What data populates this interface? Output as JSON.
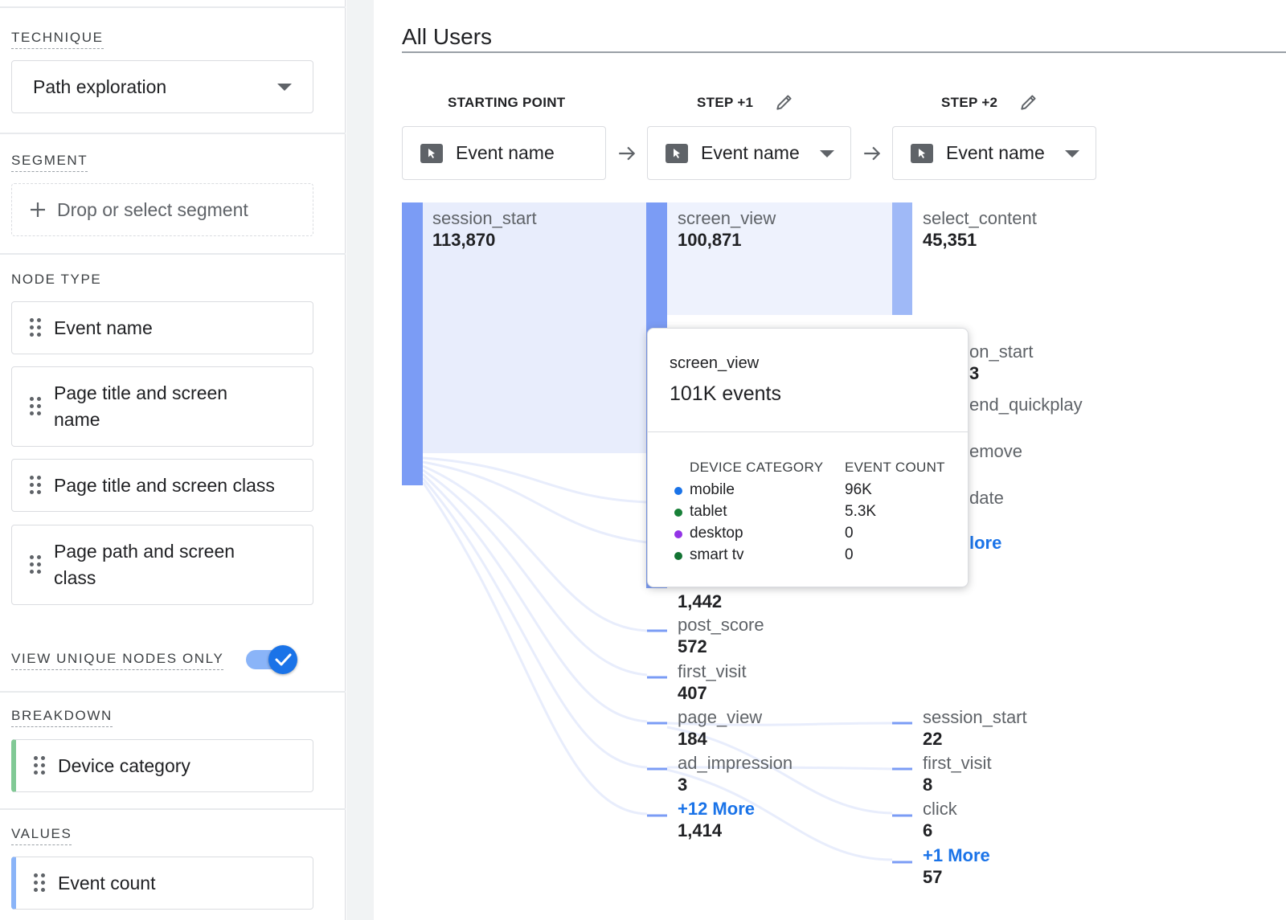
{
  "sidebar": {
    "technique": {
      "label": "TECHNIQUE",
      "value": "Path exploration"
    },
    "segment": {
      "label": "SEGMENT",
      "placeholder": "Drop or select segment"
    },
    "node_type": {
      "label": "NODE TYPE",
      "items": [
        "Event name",
        "Page title and screen name",
        "Page title and screen class",
        "Page path and screen class"
      ]
    },
    "unique_nodes": {
      "label": "VIEW UNIQUE NODES ONLY",
      "enabled": true
    },
    "breakdown": {
      "label": "BREAKDOWN",
      "value": "Device category"
    },
    "values": {
      "label": "VALUES",
      "value": "Event count"
    }
  },
  "main": {
    "title": "All Users",
    "steps": [
      {
        "label": "STARTING POINT",
        "selector": "Event name"
      },
      {
        "label": "STEP +1",
        "selector": "Event name"
      },
      {
        "label": "STEP +2",
        "selector": "Event name"
      }
    ],
    "start_node": {
      "name": "session_start",
      "value": "113,870"
    },
    "step1_top": {
      "name": "screen_view",
      "value": "100,871"
    },
    "step1_nodes": [
      {
        "name": "",
        "value": "1,442"
      },
      {
        "name": "post_score",
        "value": "572"
      },
      {
        "name": "first_visit",
        "value": "407"
      },
      {
        "name": "page_view",
        "value": "184"
      },
      {
        "name": "ad_impression",
        "value": "3"
      },
      {
        "name": "+12 More",
        "value": "1,414"
      }
    ],
    "step2_top": {
      "name": "select_content",
      "value": "45,351"
    },
    "step2_partial": [
      {
        "name": "on_start",
        "value": "3"
      },
      {
        "name": "end_quickplay",
        "value": ""
      },
      {
        "name": "emove",
        "value": ""
      },
      {
        "name": "date",
        "value": ""
      },
      {
        "name": "lore",
        "value": ""
      }
    ],
    "step2_nodes": [
      {
        "name": "session_start",
        "value": "22"
      },
      {
        "name": "first_visit",
        "value": "8"
      },
      {
        "name": "click",
        "value": "6"
      },
      {
        "name": "+1 More",
        "value": "57"
      }
    ]
  },
  "tooltip": {
    "title": "screen_view",
    "total": "101K events",
    "col1": "DEVICE CATEGORY",
    "col2": "EVENT COUNT",
    "rows": [
      {
        "name": "mobile",
        "count": "96K",
        "color": "#1a73e8"
      },
      {
        "name": "tablet",
        "count": "5.3K",
        "color": "#188038"
      },
      {
        "name": "desktop",
        "count": "0",
        "color": "#9334e6"
      },
      {
        "name": "smart tv",
        "count": "0",
        "color": "#137333"
      }
    ]
  },
  "colors": {
    "primary": "#1a73e8",
    "node_bar": "#7b9cf5",
    "link": "#e8edfc"
  }
}
